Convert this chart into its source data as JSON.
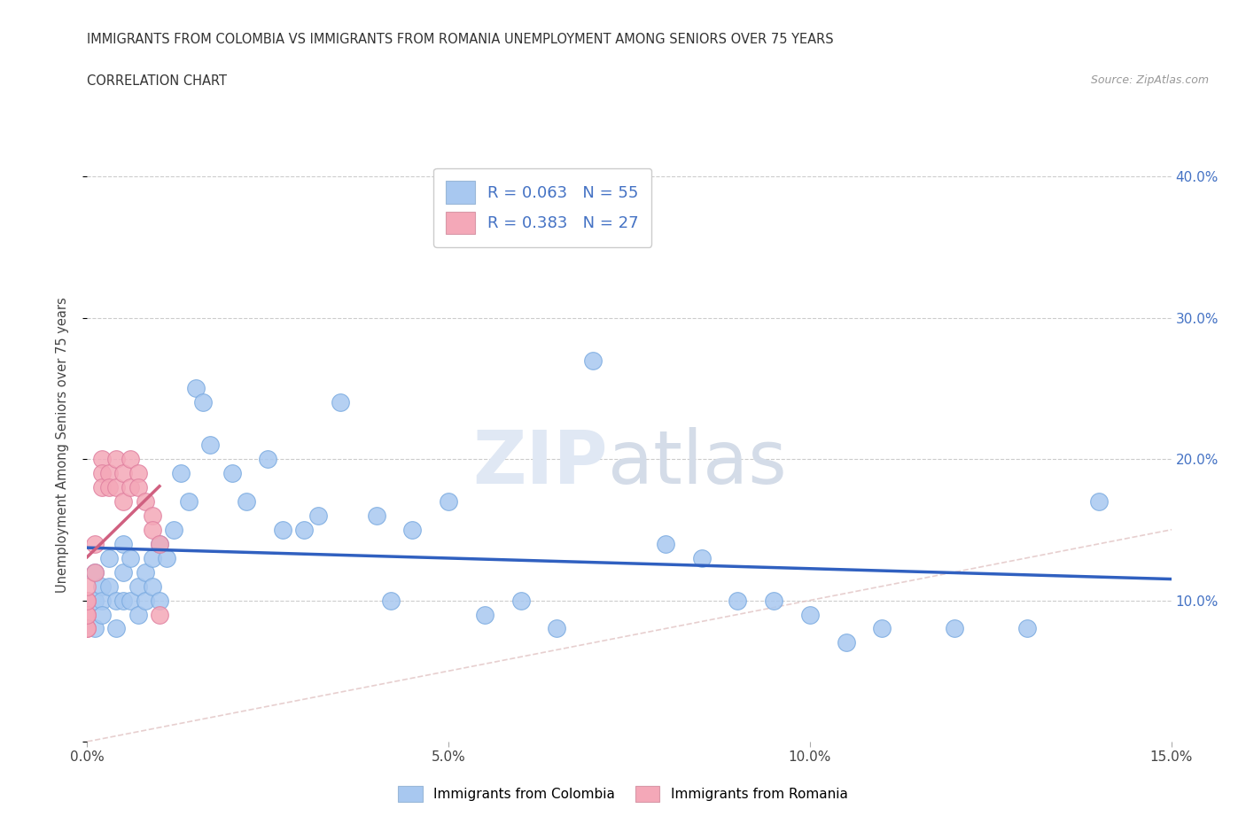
{
  "title_line1": "IMMIGRANTS FROM COLOMBIA VS IMMIGRANTS FROM ROMANIA UNEMPLOYMENT AMONG SENIORS OVER 75 YEARS",
  "title_line2": "CORRELATION CHART",
  "source_text": "Source: ZipAtlas.com",
  "ylabel": "Unemployment Among Seniors over 75 years",
  "xlim": [
    0.0,
    0.15
  ],
  "ylim": [
    0.0,
    0.42
  ],
  "xticks": [
    0.0,
    0.05,
    0.1,
    0.15
  ],
  "xtick_labels": [
    "0.0%",
    "5.0%",
    "10.0%",
    "15.0%"
  ],
  "yticks": [
    0.0,
    0.1,
    0.2,
    0.3,
    0.4
  ],
  "right_ytick_labels": [
    "",
    "10.0%",
    "20.0%",
    "30.0%",
    "40.0%"
  ],
  "colombia_color": "#a8c8f0",
  "romania_color": "#f4a8b8",
  "colombia_R": 0.063,
  "colombia_N": 55,
  "romania_R": 0.383,
  "romania_N": 27,
  "colombia_line_color": "#3060c0",
  "romania_line_color": "#d06080",
  "legend_label_colombia": "Immigrants from Colombia",
  "legend_label_romania": "Immigrants from Romania",
  "colombia_x": [
    0.001,
    0.001,
    0.001,
    0.002,
    0.002,
    0.002,
    0.003,
    0.003,
    0.004,
    0.004,
    0.005,
    0.005,
    0.005,
    0.006,
    0.006,
    0.007,
    0.007,
    0.008,
    0.008,
    0.009,
    0.009,
    0.01,
    0.01,
    0.011,
    0.012,
    0.013,
    0.014,
    0.015,
    0.016,
    0.017,
    0.02,
    0.022,
    0.025,
    0.027,
    0.03,
    0.032,
    0.035,
    0.04,
    0.042,
    0.045,
    0.05,
    0.055,
    0.06,
    0.065,
    0.07,
    0.08,
    0.085,
    0.09,
    0.095,
    0.1,
    0.105,
    0.11,
    0.12,
    0.13,
    0.14
  ],
  "colombia_y": [
    0.12,
    0.1,
    0.08,
    0.11,
    0.1,
    0.09,
    0.13,
    0.11,
    0.1,
    0.08,
    0.14,
    0.12,
    0.1,
    0.13,
    0.1,
    0.11,
    0.09,
    0.12,
    0.1,
    0.13,
    0.11,
    0.14,
    0.1,
    0.13,
    0.15,
    0.19,
    0.17,
    0.25,
    0.24,
    0.21,
    0.19,
    0.17,
    0.2,
    0.15,
    0.15,
    0.16,
    0.24,
    0.16,
    0.1,
    0.15,
    0.17,
    0.09,
    0.1,
    0.08,
    0.27,
    0.14,
    0.13,
    0.1,
    0.1,
    0.09,
    0.07,
    0.08,
    0.08,
    0.08,
    0.17
  ],
  "romania_x": [
    0.0,
    0.0,
    0.0,
    0.0,
    0.0,
    0.0,
    0.0,
    0.001,
    0.001,
    0.002,
    0.002,
    0.002,
    0.003,
    0.003,
    0.004,
    0.004,
    0.005,
    0.005,
    0.006,
    0.006,
    0.007,
    0.007,
    0.008,
    0.009,
    0.009,
    0.01,
    0.01
  ],
  "romania_y": [
    0.08,
    0.09,
    0.1,
    0.08,
    0.09,
    0.1,
    0.11,
    0.14,
    0.12,
    0.2,
    0.19,
    0.18,
    0.19,
    0.18,
    0.2,
    0.18,
    0.19,
    0.17,
    0.2,
    0.18,
    0.19,
    0.18,
    0.17,
    0.16,
    0.15,
    0.14,
    0.09
  ]
}
